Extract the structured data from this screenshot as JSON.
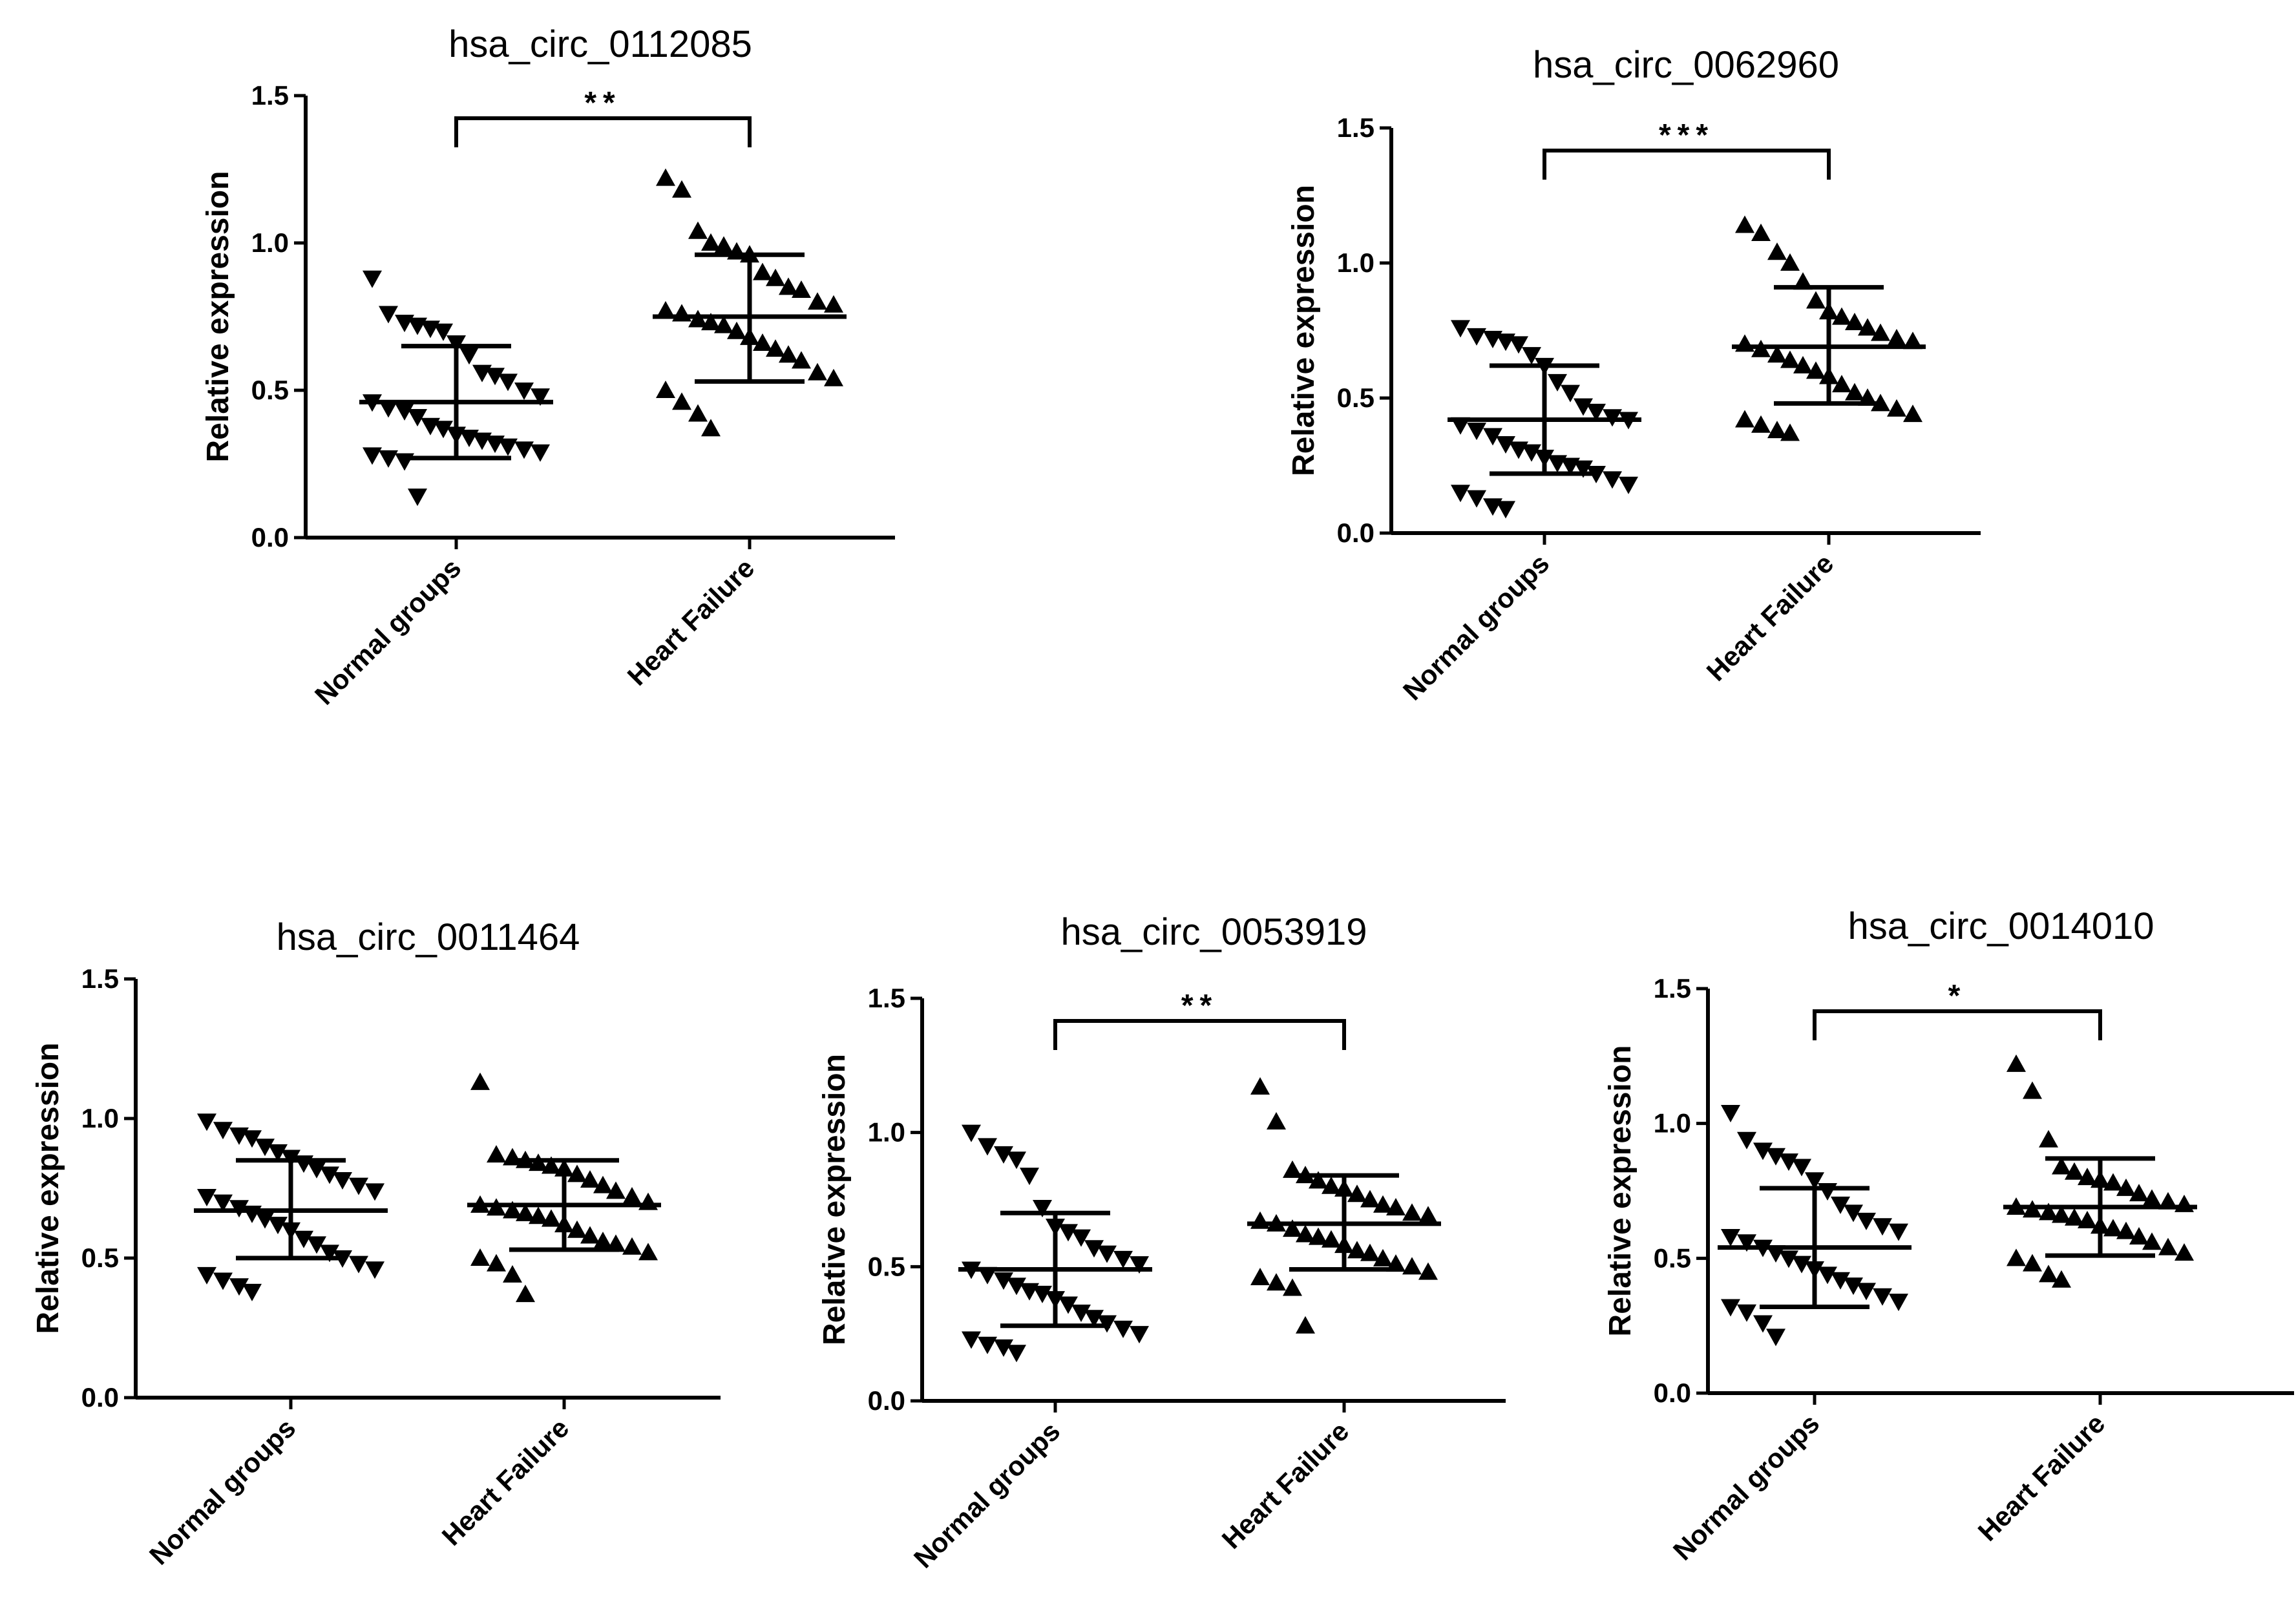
{
  "chart_data": [
    {
      "type": "scatter",
      "title": "hsa_circ_0112085",
      "ylabel": "Relative expression",
      "ylim": [
        0,
        1.5
      ],
      "yticks": [
        "0.0",
        "0.5",
        "1.0",
        "1.5"
      ],
      "categories": [
        "Normal groups",
        "Heart Failure"
      ],
      "significance": "**",
      "groups": [
        {
          "name": "Normal groups",
          "marker": "down-triangle",
          "mean": 0.46,
          "sd_low": 0.27,
          "sd_high": 0.65,
          "values": [
            0.88,
            0.76,
            0.73,
            0.72,
            0.71,
            0.7,
            0.66,
            0.62,
            0.56,
            0.55,
            0.53,
            0.5,
            0.48,
            0.46,
            0.44,
            0.43,
            0.41,
            0.38,
            0.37,
            0.35,
            0.34,
            0.33,
            0.32,
            0.31,
            0.3,
            0.29,
            0.28,
            0.27,
            0.26,
            0.14
          ]
        },
        {
          "name": "Heart Failure",
          "marker": "up-triangle",
          "mean": 0.75,
          "sd_low": 0.53,
          "sd_high": 0.96,
          "values": [
            1.22,
            1.18,
            1.04,
            1.0,
            0.99,
            0.97,
            0.96,
            0.9,
            0.88,
            0.85,
            0.84,
            0.8,
            0.79,
            0.77,
            0.76,
            0.74,
            0.73,
            0.72,
            0.7,
            0.68,
            0.66,
            0.64,
            0.62,
            0.6,
            0.56,
            0.54,
            0.5,
            0.46,
            0.42,
            0.37
          ]
        }
      ]
    },
    {
      "type": "scatter",
      "title": "hsa_circ_0062960",
      "ylabel": "Relative expression",
      "ylim": [
        0,
        1.5
      ],
      "yticks": [
        "0.0",
        "0.5",
        "1.0",
        "1.5"
      ],
      "categories": [
        "Normal groups",
        "Heart Failure"
      ],
      "significance": "***",
      "groups": [
        {
          "name": "Normal groups",
          "marker": "down-triangle",
          "mean": 0.42,
          "sd_low": 0.22,
          "sd_high": 0.62,
          "values": [
            0.76,
            0.73,
            0.72,
            0.71,
            0.7,
            0.66,
            0.62,
            0.56,
            0.52,
            0.47,
            0.45,
            0.43,
            0.42,
            0.4,
            0.38,
            0.36,
            0.33,
            0.31,
            0.3,
            0.28,
            0.26,
            0.25,
            0.24,
            0.22,
            0.2,
            0.18,
            0.15,
            0.13,
            0.1,
            0.09
          ]
        },
        {
          "name": "Heart Failure",
          "marker": "up-triangle",
          "mean": 0.69,
          "sd_low": 0.48,
          "sd_high": 0.91,
          "values": [
            1.14,
            1.11,
            1.04,
            1.0,
            0.93,
            0.86,
            0.82,
            0.8,
            0.78,
            0.76,
            0.74,
            0.72,
            0.71,
            0.7,
            0.68,
            0.66,
            0.64,
            0.62,
            0.6,
            0.58,
            0.55,
            0.52,
            0.5,
            0.48,
            0.46,
            0.44,
            0.42,
            0.4,
            0.38,
            0.37
          ]
        }
      ]
    },
    {
      "type": "scatter",
      "title": "hsa_circ_0011464",
      "ylabel": "Relative expression",
      "ylim": [
        0,
        1.5
      ],
      "yticks": [
        "0.0",
        "0.5",
        "1.0",
        "1.5"
      ],
      "categories": [
        "Normal groups",
        "Heart Failure"
      ],
      "significance": "",
      "groups": [
        {
          "name": "Normal groups",
          "marker": "down-triangle",
          "mean": 0.67,
          "sd_low": 0.5,
          "sd_high": 0.85,
          "values": [
            0.99,
            0.96,
            0.94,
            0.93,
            0.9,
            0.88,
            0.86,
            0.84,
            0.82,
            0.8,
            0.78,
            0.76,
            0.74,
            0.72,
            0.7,
            0.68,
            0.66,
            0.64,
            0.62,
            0.6,
            0.57,
            0.55,
            0.52,
            0.5,
            0.48,
            0.46,
            0.44,
            0.42,
            0.4,
            0.38
          ]
        },
        {
          "name": "Heart Failure",
          "marker": "up-triangle",
          "mean": 0.69,
          "sd_low": 0.53,
          "sd_high": 0.85,
          "values": [
            1.13,
            0.87,
            0.86,
            0.85,
            0.84,
            0.83,
            0.82,
            0.8,
            0.78,
            0.76,
            0.74,
            0.72,
            0.7,
            0.69,
            0.68,
            0.67,
            0.66,
            0.65,
            0.64,
            0.62,
            0.6,
            0.58,
            0.56,
            0.55,
            0.54,
            0.52,
            0.5,
            0.48,
            0.44,
            0.37
          ]
        }
      ]
    },
    {
      "type": "scatter",
      "title": "hsa_circ_0053919",
      "ylabel": "Relative expression",
      "ylim": [
        0,
        1.5
      ],
      "yticks": [
        "0.0",
        "0.5",
        "1.0",
        "1.5"
      ],
      "categories": [
        "Normal groups",
        "Heart Failure"
      ],
      "significance": "**",
      "groups": [
        {
          "name": "Normal groups",
          "marker": "down-triangle",
          "mean": 0.49,
          "sd_low": 0.28,
          "sd_high": 0.7,
          "values": [
            1.0,
            0.95,
            0.92,
            0.9,
            0.84,
            0.72,
            0.65,
            0.63,
            0.61,
            0.57,
            0.55,
            0.53,
            0.51,
            0.49,
            0.47,
            0.45,
            0.43,
            0.41,
            0.4,
            0.38,
            0.36,
            0.33,
            0.31,
            0.29,
            0.27,
            0.25,
            0.23,
            0.21,
            0.2,
            0.18
          ]
        },
        {
          "name": "Heart Failure",
          "marker": "up-triangle",
          "mean": 0.66,
          "sd_low": 0.49,
          "sd_high": 0.84,
          "values": [
            1.17,
            1.04,
            0.86,
            0.84,
            0.82,
            0.8,
            0.79,
            0.77,
            0.75,
            0.73,
            0.72,
            0.7,
            0.69,
            0.67,
            0.66,
            0.64,
            0.62,
            0.61,
            0.6,
            0.58,
            0.56,
            0.55,
            0.53,
            0.51,
            0.5,
            0.48,
            0.46,
            0.44,
            0.42,
            0.28
          ]
        }
      ]
    },
    {
      "type": "scatter",
      "title": "hsa_circ_0014010",
      "ylabel": "Relative expression",
      "ylim": [
        0,
        1.5
      ],
      "yticks": [
        "0.0",
        "0.5",
        "1.0",
        "1.5"
      ],
      "categories": [
        "Normal groups",
        "Heart Failure"
      ],
      "significance": "*",
      "groups": [
        {
          "name": "Normal groups",
          "marker": "down-triangle",
          "mean": 0.54,
          "sd_low": 0.32,
          "sd_high": 0.76,
          "values": [
            1.04,
            0.94,
            0.9,
            0.88,
            0.86,
            0.84,
            0.79,
            0.75,
            0.7,
            0.67,
            0.64,
            0.62,
            0.6,
            0.58,
            0.56,
            0.54,
            0.52,
            0.5,
            0.48,
            0.46,
            0.44,
            0.42,
            0.4,
            0.38,
            0.36,
            0.34,
            0.32,
            0.3,
            0.26,
            0.21
          ]
        },
        {
          "name": "Heart Failure",
          "marker": "up-triangle",
          "mean": 0.69,
          "sd_low": 0.51,
          "sd_high": 0.87,
          "values": [
            1.22,
            1.12,
            0.94,
            0.84,
            0.82,
            0.8,
            0.79,
            0.78,
            0.76,
            0.74,
            0.72,
            0.71,
            0.7,
            0.69,
            0.68,
            0.67,
            0.66,
            0.65,
            0.64,
            0.62,
            0.61,
            0.6,
            0.58,
            0.56,
            0.54,
            0.52,
            0.5,
            0.48,
            0.44,
            0.42
          ]
        }
      ]
    }
  ]
}
